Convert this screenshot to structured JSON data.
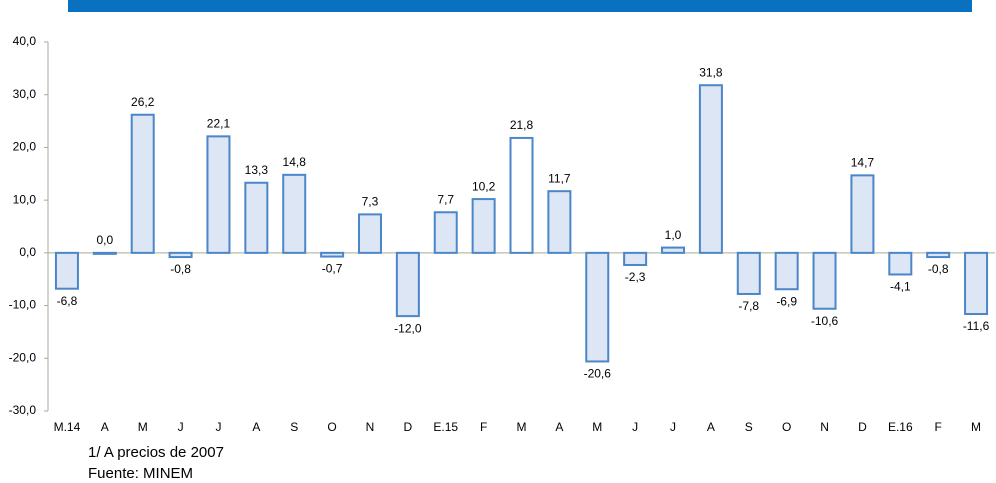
{
  "chart_data": {
    "type": "bar",
    "categories": [
      "M.14",
      "A",
      "M",
      "J",
      "J",
      "A",
      "S",
      "O",
      "N",
      "D",
      "E.15",
      "F",
      "M",
      "A",
      "M",
      "J",
      "J",
      "A",
      "S",
      "O",
      "N",
      "D",
      "E.16",
      "F",
      "M"
    ],
    "values": [
      -6.8,
      0.0,
      26.2,
      -0.8,
      22.1,
      13.3,
      14.8,
      -0.7,
      7.3,
      -12.0,
      7.7,
      10.2,
      21.8,
      11.7,
      -20.6,
      -2.3,
      1.0,
      31.8,
      -7.8,
      -6.9,
      -10.6,
      14.7,
      -4.1,
      -0.8,
      -11.6
    ],
    "value_labels": [
      "-6,8",
      "0,0",
      "26,2",
      "-0,8",
      "22,1",
      "13,3",
      "14,8",
      "-0,7",
      "7,3",
      "-12,0",
      "7,7",
      "10,2",
      "21,8",
      "11,7",
      "-20,6",
      "-2,3",
      "1,0",
      "31,8",
      "-7,8",
      "-6,9",
      "-10,6",
      "14,7",
      "-4,1",
      "-0,8",
      "-11,6"
    ],
    "colors": [
      "#dce6f4",
      "#dce6f4",
      "#dce6f4",
      "#dce6f4",
      "#dce6f4",
      "#dce6f4",
      "#dce6f4",
      "#dce6f4",
      "#dce6f4",
      "#dce6f4",
      "#dce6f4",
      "#dce6f4",
      "#ffffff",
      "#dce6f4",
      "#dce6f4",
      "#dce6f4",
      "#dce6f4",
      "#dce6f4",
      "#dce6f4",
      "#dce6f4",
      "#dce6f4",
      "#dce6f4",
      "#dce6f4",
      "#dce6f4",
      "#dce6f4"
    ],
    "edge_color": "#4a86c8",
    "ylim": [
      -30,
      40
    ],
    "yticks": [
      {
        "value": -30,
        "label": "-30,0"
      },
      {
        "value": -20,
        "label": "-20,0"
      },
      {
        "value": -10,
        "label": "-10,0"
      },
      {
        "value": 0,
        "label": "0,0"
      },
      {
        "value": 10,
        "label": "10,0"
      },
      {
        "value": 20,
        "label": "20,0"
      },
      {
        "value": 30,
        "label": "30,0"
      },
      {
        "value": 40,
        "label": "40,0"
      }
    ],
    "notes": [
      "1/ A precios de 2007",
      "Fuente: MINEM"
    ]
  }
}
